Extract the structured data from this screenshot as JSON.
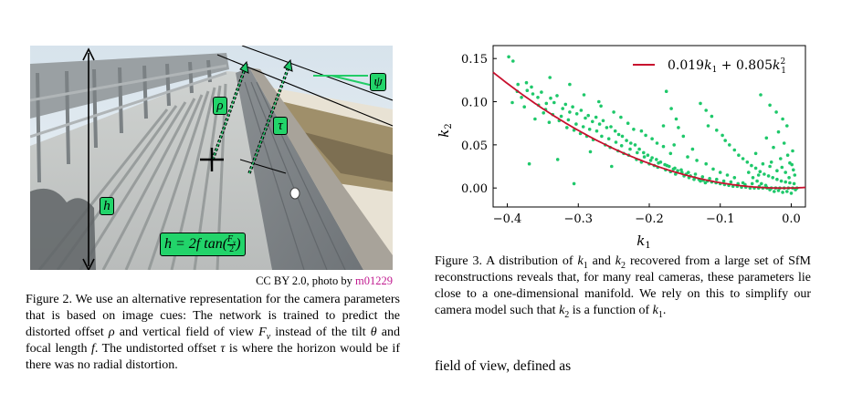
{
  "figure2": {
    "photo_labels": {
      "h": "h",
      "rho": "ρ",
      "tau": "τ",
      "psi": "ψ",
      "formula_prefix": "h = 2f tan(",
      "formula_num": "F",
      "formula_num_sub": "v",
      "formula_den": "2",
      "formula_suffix": ")"
    },
    "credit_prefix": "CC BY 2.0, photo by",
    "credit_user": "m01229",
    "caption_html": "Figure 2. We use an alternative representation for the camera parameters that is based on image cues: The network is trained to predict the distorted offset <i>ρ</i> and vertical field of view <i>F</i><sub><i>v</i></sub> instead of the tilt <i>θ</i> and focal length <i>f</i>. The undistorted offset <i>τ</i> is where the horizon would be if there was no radial distortion."
  },
  "figure3": {
    "caption_html": "Figure 3. A distribution of <i>k</i><sub>1</sub> and <i>k</i><sub>2</sub> recovered from a large set of SfM reconstructions reveals that, for many real cameras, these parameters lie close to a one-dimensional manifold. We rely on this to simplify our camera model such that <i>k</i><sub>2</sub> is a function of <i>k</i><sub>1</sub>."
  },
  "body_text": "field of view, defined as",
  "chart_data": {
    "type": "scatter",
    "xlabel": "k1",
    "ylabel": "k2",
    "xlim": [
      -0.42,
      0.02
    ],
    "ylim": [
      -0.022,
      0.165
    ],
    "xticks": [
      -0.4,
      -0.3,
      -0.2,
      -0.1,
      0.0
    ],
    "xtick_labels": [
      "−0.4",
      "−0.3",
      "−0.2",
      "−0.1",
      "0.0"
    ],
    "yticks": [
      0.0,
      0.05,
      0.1,
      0.15
    ],
    "ytick_labels": [
      "0.00",
      "0.05",
      "0.10",
      "0.15"
    ],
    "legend": "0.019k1 + 0.805k1²",
    "legend_placement": "top-right",
    "fit": {
      "a": 0.019,
      "b": 0.805
    },
    "colors": {
      "points": "#1ec86a",
      "fit": "#c8102e"
    },
    "points": [
      [
        -0.398,
        0.152
      ],
      [
        -0.392,
        0.147
      ],
      [
        -0.385,
        0.12
      ],
      [
        -0.373,
        0.122
      ],
      [
        -0.372,
        0.113
      ],
      [
        -0.366,
        0.117
      ],
      [
        -0.364,
        0.109
      ],
      [
        -0.357,
        0.105
      ],
      [
        -0.352,
        0.111
      ],
      [
        -0.345,
        0.098
      ],
      [
        -0.339,
        0.104
      ],
      [
        -0.334,
        0.099
      ],
      [
        -0.33,
        0.107
      ],
      [
        -0.322,
        0.092
      ],
      [
        -0.318,
        0.097
      ],
      [
        -0.312,
        0.088
      ],
      [
        -0.308,
        0.094
      ],
      [
        -0.302,
        0.086
      ],
      [
        -0.296,
        0.09
      ],
      [
        -0.29,
        0.081
      ],
      [
        -0.286,
        0.084
      ],
      [
        -0.28,
        0.077
      ],
      [
        -0.275,
        0.082
      ],
      [
        -0.27,
        0.074
      ],
      [
        -0.265,
        0.078
      ],
      [
        -0.26,
        0.07
      ],
      [
        -0.254,
        0.071
      ],
      [
        -0.248,
        0.066
      ],
      [
        -0.243,
        0.062
      ],
      [
        -0.238,
        0.06
      ],
      [
        -0.232,
        0.055
      ],
      [
        -0.226,
        0.052
      ],
      [
        -0.22,
        0.05
      ],
      [
        -0.214,
        0.045
      ],
      [
        -0.208,
        0.041
      ],
      [
        -0.202,
        0.038
      ],
      [
        -0.196,
        0.035
      ],
      [
        -0.19,
        0.033
      ],
      [
        -0.184,
        0.03
      ],
      [
        -0.178,
        0.027
      ],
      [
        -0.172,
        0.025
      ],
      [
        -0.166,
        0.022
      ],
      [
        -0.16,
        0.02
      ],
      [
        -0.154,
        0.018
      ],
      [
        -0.148,
        0.016
      ],
      [
        -0.142,
        0.014
      ],
      [
        -0.136,
        0.012
      ],
      [
        -0.13,
        0.01
      ],
      [
        -0.124,
        0.009
      ],
      [
        -0.118,
        0.008
      ],
      [
        -0.112,
        0.007
      ],
      [
        -0.106,
        0.006
      ],
      [
        -0.1,
        0.005
      ],
      [
        -0.094,
        0.004
      ],
      [
        -0.088,
        0.003
      ],
      [
        -0.082,
        0.002
      ],
      [
        -0.076,
        0.002
      ],
      [
        -0.07,
        0.001
      ],
      [
        -0.064,
        0.001
      ],
      [
        -0.058,
        0.0
      ],
      [
        -0.052,
        0.0
      ],
      [
        -0.046,
        0.0
      ],
      [
        -0.04,
        0.0
      ],
      [
        -0.034,
        0.0
      ],
      [
        -0.028,
        0.0
      ],
      [
        -0.022,
        0.0
      ],
      [
        -0.016,
        0.0
      ],
      [
        -0.01,
        0.0
      ],
      [
        -0.004,
        0.0
      ],
      [
        0.002,
        0.0
      ],
      [
        0.008,
        0.0
      ],
      [
        -0.376,
        0.094
      ],
      [
        -0.361,
        0.08
      ],
      [
        -0.349,
        0.087
      ],
      [
        -0.341,
        0.076
      ],
      [
        -0.327,
        0.078
      ],
      [
        -0.316,
        0.07
      ],
      [
        -0.306,
        0.067
      ],
      [
        -0.297,
        0.063
      ],
      [
        -0.288,
        0.06
      ],
      [
        -0.279,
        0.056
      ],
      [
        -0.262,
        0.05
      ],
      [
        -0.255,
        0.047
      ],
      [
        -0.244,
        0.043
      ],
      [
        -0.236,
        0.04
      ],
      [
        -0.229,
        0.038
      ],
      [
        -0.218,
        0.033
      ],
      [
        -0.211,
        0.03
      ],
      [
        -0.2,
        0.028
      ],
      [
        -0.193,
        0.026
      ],
      [
        -0.188,
        0.024
      ],
      [
        -0.177,
        0.021
      ],
      [
        -0.17,
        0.019
      ],
      [
        -0.163,
        0.016
      ],
      [
        -0.151,
        0.014
      ],
      [
        -0.144,
        0.012
      ],
      [
        -0.137,
        0.01
      ],
      [
        -0.128,
        0.008
      ],
      [
        -0.121,
        0.006
      ],
      [
        -0.329,
        0.033
      ],
      [
        -0.369,
        0.028
      ],
      [
        -0.306,
        0.005
      ],
      [
        -0.283,
        0.042
      ],
      [
        -0.253,
        0.025
      ],
      [
        -0.211,
        0.066
      ],
      [
        -0.205,
        0.061
      ],
      [
        -0.196,
        0.057
      ],
      [
        -0.189,
        0.052
      ],
      [
        -0.18,
        0.048
      ],
      [
        -0.176,
        0.112
      ],
      [
        -0.169,
        0.092
      ],
      [
        -0.162,
        0.08
      ],
      [
        -0.159,
        0.07
      ],
      [
        -0.152,
        0.06
      ],
      [
        -0.18,
        0.072
      ],
      [
        -0.165,
        0.05
      ],
      [
        -0.17,
        0.04
      ],
      [
        -0.128,
        0.098
      ],
      [
        -0.12,
        0.09
      ],
      [
        -0.112,
        0.083
      ],
      [
        -0.117,
        0.072
      ],
      [
        -0.105,
        0.067
      ],
      [
        -0.097,
        0.061
      ],
      [
        -0.093,
        0.055
      ],
      [
        -0.087,
        0.05
      ],
      [
        -0.08,
        0.044
      ],
      [
        -0.074,
        0.038
      ],
      [
        -0.068,
        0.034
      ],
      [
        -0.062,
        0.03
      ],
      [
        -0.056,
        0.026
      ],
      [
        -0.05,
        0.023
      ],
      [
        -0.044,
        0.019
      ],
      [
        -0.038,
        0.016
      ],
      [
        -0.032,
        0.014
      ],
      [
        -0.026,
        0.012
      ],
      [
        -0.02,
        0.01
      ],
      [
        -0.014,
        0.008
      ],
      [
        -0.008,
        0.007
      ],
      [
        -0.002,
        0.006
      ],
      [
        0.004,
        0.005
      ],
      [
        -0.043,
        0.108
      ],
      [
        -0.03,
        0.096
      ],
      [
        -0.021,
        0.088
      ],
      [
        -0.012,
        0.08
      ],
      [
        -0.006,
        0.072
      ],
      [
        -0.018,
        0.065
      ],
      [
        -0.035,
        0.058
      ],
      [
        -0.01,
        0.052
      ],
      [
        -0.025,
        0.047
      ],
      [
        0.002,
        0.043
      ],
      [
        -0.05,
        0.04
      ],
      [
        -0.005,
        0.038
      ],
      [
        -0.015,
        0.034
      ],
      [
        -0.028,
        0.03
      ],
      [
        -0.002,
        0.029
      ],
      [
        -0.06,
        0.018
      ],
      [
        -0.054,
        0.012
      ],
      [
        -0.048,
        0.008
      ],
      [
        -0.042,
        0.005
      ],
      [
        -0.036,
        0.003
      ],
      [
        -0.03,
        -0.002
      ],
      [
        -0.024,
        -0.004
      ],
      [
        -0.018,
        -0.003
      ],
      [
        -0.012,
        -0.005
      ],
      [
        -0.006,
        -0.004
      ],
      [
        0.0,
        -0.006
      ],
      [
        0.006,
        -0.002
      ],
      [
        -0.003,
        0.012
      ],
      [
        0.005,
        0.015
      ],
      [
        -0.008,
        0.018
      ],
      [
        0.003,
        0.021
      ],
      [
        -0.013,
        0.024
      ],
      [
        0.001,
        0.027
      ],
      [
        -0.02,
        0.02
      ],
      [
        -0.03,
        0.025
      ],
      [
        -0.04,
        0.028
      ],
      [
        -0.046,
        0.015
      ],
      [
        -0.055,
        0.005
      ],
      [
        -0.068,
        0.006
      ],
      [
        -0.08,
        0.012
      ],
      [
        -0.09,
        0.015
      ],
      [
        -0.1,
        0.018
      ],
      [
        -0.11,
        0.022
      ],
      [
        -0.12,
        0.028
      ],
      [
        -0.139,
        0.045
      ],
      [
        -0.146,
        0.036
      ],
      [
        -0.133,
        0.032
      ],
      [
        -0.34,
        0.128
      ],
      [
        -0.312,
        0.12
      ],
      [
        -0.292,
        0.108
      ],
      [
        -0.271,
        0.1
      ],
      [
        -0.268,
        0.095
      ],
      [
        -0.25,
        0.088
      ],
      [
        -0.24,
        0.082
      ],
      [
        -0.23,
        0.075
      ],
      [
        -0.222,
        0.068
      ],
      [
        -0.393,
        0.099
      ],
      [
        -0.386,
        0.112
      ],
      [
        -0.38,
        0.105
      ],
      [
        -0.356,
        0.096
      ],
      [
        -0.346,
        0.091
      ],
      [
        -0.336,
        0.085
      ],
      [
        -0.324,
        0.083
      ],
      [
        -0.314,
        0.079
      ],
      [
        -0.303,
        0.074
      ],
      [
        -0.293,
        0.071
      ],
      [
        -0.284,
        0.068
      ],
      [
        -0.274,
        0.066
      ],
      [
        -0.267,
        0.06
      ],
      [
        -0.257,
        0.057
      ],
      [
        -0.247,
        0.053
      ],
      [
        -0.239,
        0.049
      ],
      [
        -0.227,
        0.045
      ],
      [
        -0.217,
        0.041
      ],
      [
        -0.207,
        0.036
      ],
      [
        -0.198,
        0.032
      ],
      [
        -0.187,
        0.029
      ],
      [
        -0.175,
        0.026
      ],
      [
        -0.164,
        0.023
      ],
      [
        -0.155,
        0.021
      ],
      [
        -0.145,
        0.018
      ],
      [
        -0.135,
        0.016
      ],
      [
        -0.125,
        0.013
      ],
      [
        -0.115,
        0.011
      ],
      [
        -0.105,
        0.01
      ],
      [
        -0.095,
        0.008
      ],
      [
        -0.085,
        0.007
      ],
      [
        -0.075,
        0.005
      ],
      [
        -0.065,
        0.004
      ],
      [
        -0.045,
        0.002
      ],
      [
        -0.035,
        0.001
      ]
    ]
  }
}
